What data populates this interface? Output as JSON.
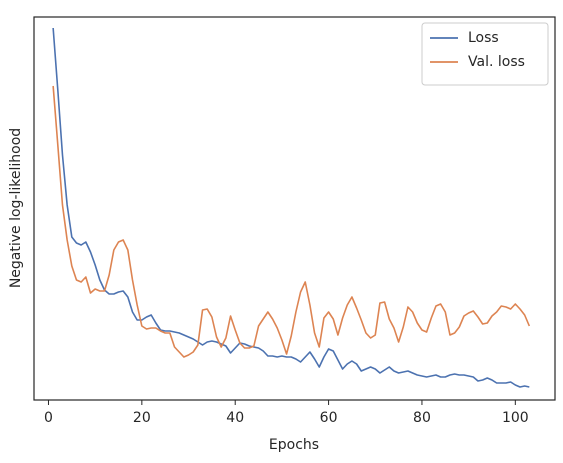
{
  "chart_data": {
    "type": "line",
    "xlabel": "Epochs",
    "ylabel": "Negative log-likelihood",
    "x": [
      1,
      2,
      3,
      4,
      5,
      6,
      7,
      8,
      9,
      10,
      11,
      12,
      13,
      14,
      15,
      16,
      17,
      18,
      19,
      20,
      21,
      22,
      23,
      24,
      25,
      26,
      27,
      28,
      29,
      30,
      31,
      32,
      33,
      34,
      35,
      36,
      37,
      38,
      39,
      40,
      41,
      42,
      43,
      44,
      45,
      46,
      47,
      48,
      49,
      50,
      51,
      52,
      53,
      54,
      55,
      56,
      57,
      58,
      59,
      60,
      61,
      62,
      63,
      64,
      65,
      66,
      67,
      68,
      69,
      70,
      71,
      72,
      73,
      74,
      75,
      76,
      77,
      78,
      79,
      80,
      81,
      82,
      83,
      84,
      85,
      86,
      87,
      88,
      89,
      90,
      91,
      92,
      93,
      94,
      95,
      96,
      97,
      98,
      99,
      100,
      101,
      102,
      103
    ],
    "series": [
      {
        "name": "Loss",
        "color": "#4c72b0",
        "values": [
          372,
          310,
          245,
          195,
          163,
          157,
          155,
          158,
          148,
          135,
          120,
          110,
          106,
          106,
          108,
          109,
          103,
          88,
          80,
          80,
          83,
          85,
          77,
          70,
          69,
          69,
          68,
          67,
          65,
          63,
          61,
          58,
          55,
          58,
          59,
          58,
          56,
          54,
          47,
          52,
          57,
          56,
          54,
          53,
          52,
          49,
          44,
          44,
          43,
          44,
          43,
          43,
          41,
          38,
          43,
          48,
          41,
          33,
          43,
          51,
          49,
          40,
          31,
          36,
          39,
          36,
          29,
          31,
          33,
          31,
          27,
          30,
          33,
          29,
          27,
          28,
          29,
          27,
          25,
          24,
          23,
          24,
          25,
          23,
          23,
          25,
          26,
          25,
          25,
          24,
          23,
          19,
          20,
          22,
          20,
          17,
          17,
          17,
          18,
          15,
          13,
          14,
          13
        ]
      },
      {
        "name": "Val. loss",
        "color": "#dd8452",
        "values": [
          314,
          255,
          195,
          160,
          134,
          120,
          118,
          123,
          107,
          111,
          109,
          109,
          125,
          150,
          158,
          160,
          150,
          120,
          95,
          74,
          71,
          72,
          72,
          69,
          67,
          67,
          53,
          48,
          43,
          45,
          48,
          55,
          90,
          91,
          83,
          63,
          53,
          62,
          84,
          70,
          57,
          52,
          52,
          54,
          74,
          81,
          88,
          81,
          72,
          60,
          46,
          64,
          88,
          108,
          118,
          95,
          67,
          53,
          82,
          88,
          81,
          65,
          82,
          95,
          103,
          92,
          80,
          67,
          62,
          65,
          97,
          98,
          81,
          72,
          58,
          73,
          93,
          88,
          77,
          70,
          68,
          82,
          94,
          96,
          88,
          65,
          67,
          73,
          84,
          87,
          89,
          83,
          76,
          77,
          84,
          88,
          94,
          93,
          91,
          96,
          91,
          85,
          74
        ]
      }
    ],
    "xlim": [
      -3.1,
      108.5
    ],
    "xticks": [
      0,
      20,
      40,
      60,
      80,
      100
    ],
    "ylim": [
      0,
      383
    ],
    "grid": false,
    "legend": "upper right"
  }
}
